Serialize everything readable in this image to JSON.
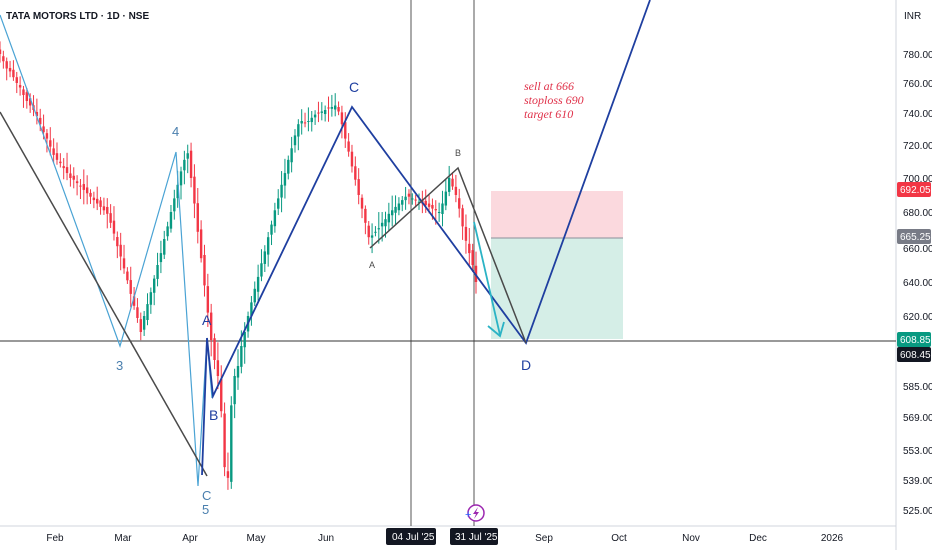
{
  "header": {
    "symbol_title": "TATA MOTORS LTD · 1D · NSE",
    "currency": "INR"
  },
  "annotation": {
    "line1": "sell at 666",
    "line2": "stoploss 690",
    "line3": "target 610"
  },
  "price_badges": {
    "stoploss": "692.05",
    "entry": "665.25",
    "target": "608.85",
    "crosshair": "608.45"
  },
  "date_badges": {
    "first": "04 Jul '25",
    "second": "31 Jul '25"
  },
  "colors": {
    "up": "#089981",
    "down": "#f23645",
    "wave_blue": "#1f3fa0",
    "wave_light": "#4aa3d4",
    "wave_grey": "#4a4a4a",
    "stop_zone": "#fbd9de",
    "target_zone": "#d5eee7"
  },
  "chart_data": {
    "type": "candlestick",
    "title": "TATA MOTORS LTD · 1D · NSE",
    "y_axis": {
      "label": "INR",
      "ticks": [
        780,
        760,
        740,
        720,
        700,
        680,
        660,
        640,
        620,
        585,
        569,
        553,
        539,
        525
      ],
      "tick_labels": [
        "780.00",
        "760.00",
        "740.00",
        "720.00",
        "700.00",
        "680.00",
        "660.00",
        "640.00",
        "620.00",
        "585.00",
        "569.00",
        "553.00",
        "539.00",
        "525.00"
      ],
      "range": [
        519,
        800
      ]
    },
    "x_axis": {
      "month_labels": [
        "Feb",
        "Mar",
        "Apr",
        "May",
        "Jun",
        "Sep",
        "Oct",
        "Nov",
        "Dec",
        "2026"
      ]
    },
    "daily_closes_approx": [
      780,
      775,
      770,
      768,
      764,
      760,
      757,
      752,
      748,
      745,
      742,
      738,
      733,
      728,
      724,
      719,
      714,
      711,
      709,
      706,
      703,
      700,
      699,
      697,
      695,
      693,
      691,
      689,
      687,
      685,
      683,
      681,
      679,
      674,
      668,
      661,
      655,
      648,
      641,
      633,
      626,
      619,
      612,
      620,
      627,
      634,
      642,
      650,
      657,
      665,
      672,
      680,
      688,
      696,
      704,
      711,
      715,
      700,
      685,
      669,
      654,
      638,
      622,
      608,
      598,
      590,
      572,
      545,
      540,
      575,
      590,
      595,
      605,
      612,
      620,
      628,
      636,
      643,
      651,
      658,
      666,
      673,
      681,
      688,
      696,
      703,
      711,
      718,
      726,
      733,
      735,
      734,
      735,
      737,
      739,
      740,
      741,
      742,
      743,
      744,
      745,
      741,
      733,
      724,
      716,
      707,
      699,
      690,
      682,
      674,
      666,
      667,
      669,
      671,
      674,
      676,
      679,
      681,
      683,
      685,
      687,
      689,
      689,
      688,
      687,
      686,
      685,
      684,
      683,
      682,
      681,
      680,
      685,
      692,
      700,
      695,
      690,
      682,
      672,
      664,
      657,
      650,
      640
    ],
    "waves": [
      {
        "name": "light-blue",
        "labels": [
          "4",
          "3",
          "5"
        ]
      },
      {
        "name": "blue",
        "labels": [
          "A",
          "B",
          "C",
          "D"
        ]
      },
      {
        "name": "grey",
        "labels": [
          "A",
          "B",
          "C"
        ]
      }
    ],
    "trade_setup": {
      "entry": 665.25,
      "stoploss": 692.05,
      "target": 608.85
    },
    "crosshair_price": 608.45
  }
}
